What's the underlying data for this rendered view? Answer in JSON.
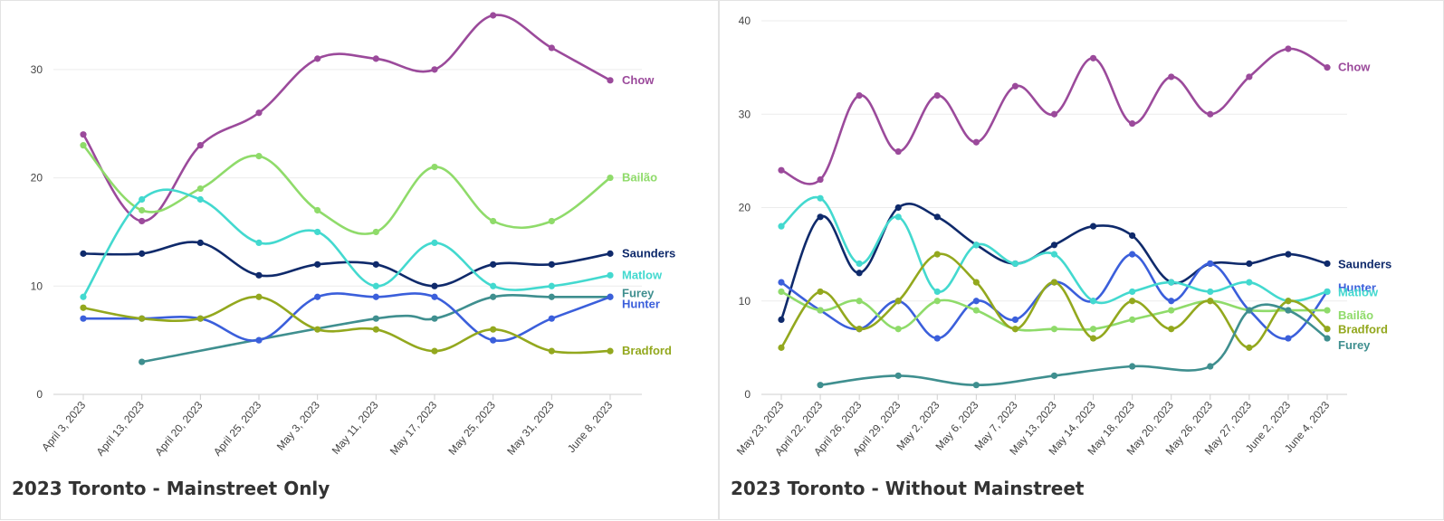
{
  "charts": [
    {
      "title": "2023 Toronto - Mainstreet Only",
      "chart_data": {
        "type": "line",
        "title": "2023 Toronto - Mainstreet Only",
        "categories": [
          "April 3, 2023",
          "April 13, 2023",
          "April 20, 2023",
          "April 25, 2023",
          "May 3, 2023",
          "May 11, 2023",
          "May 17, 2023",
          "May 25, 2023",
          "May 31, 2023",
          "June 8, 2023"
        ],
        "ylim": [
          0,
          35
        ],
        "yticks": [
          0,
          10,
          20,
          30
        ],
        "grid": true,
        "legend": "end-of-line labels",
        "series": [
          {
            "name": "Chow",
            "color": "#9b4a9b",
            "values": [
              24,
              16,
              23,
              26,
              31,
              31,
              30,
              35,
              32,
              29
            ]
          },
          {
            "name": "Bailão",
            "color": "#8fdb6a",
            "values": [
              23,
              17,
              19,
              22,
              17,
              15,
              21,
              16,
              16,
              20
            ]
          },
          {
            "name": "Saunders",
            "color": "#0f2a6b",
            "values": [
              13,
              13,
              14,
              11,
              12,
              12,
              10,
              12,
              12,
              13
            ]
          },
          {
            "name": "Matlow",
            "color": "#43d9cf",
            "values": [
              9,
              18,
              18,
              14,
              15,
              10,
              14,
              10,
              10,
              11
            ]
          },
          {
            "name": "Furey",
            "color": "#3f8f8f",
            "values": [
              null,
              3,
              null,
              null,
              null,
              7,
              7,
              9,
              9,
              9
            ]
          },
          {
            "name": "Hunter",
            "color": "#3b5fdb",
            "values": [
              7,
              7,
              7,
              5,
              9,
              9,
              9,
              5,
              7,
              9
            ]
          },
          {
            "name": "Bradford",
            "color": "#93a81e",
            "values": [
              8,
              7,
              7,
              9,
              6,
              6,
              4,
              6,
              4,
              4
            ]
          }
        ]
      }
    },
    {
      "title": "2023 Toronto - Without Mainstreet",
      "chart_data": {
        "type": "line",
        "title": "2023 Toronto - Without Mainstreet",
        "categories": [
          "May 23, 2023",
          "April 22, 2023",
          "April 26, 2023",
          "April 29, 2023",
          "May 2, 2023",
          "May 6, 2023",
          "May 7, 2023",
          "May 13, 2023",
          "May 14, 2023",
          "May 18, 2023",
          "May 20, 2023",
          "May 26, 2023",
          "May 27, 2023",
          "June 2, 2023",
          "June 4, 2023"
        ],
        "ylim": [
          0,
          40
        ],
        "yticks": [
          0,
          10,
          20,
          30,
          40
        ],
        "grid": true,
        "legend": "end-of-line labels",
        "series": [
          {
            "name": "Chow",
            "color": "#9b4a9b",
            "values": [
              24,
              23,
              32,
              26,
              32,
              27,
              33,
              30,
              36,
              29,
              34,
              30,
              34,
              37,
              35
            ]
          },
          {
            "name": "Saunders",
            "color": "#0f2a6b",
            "values": [
              8,
              19,
              13,
              20,
              19,
              16,
              14,
              16,
              18,
              17,
              12,
              14,
              14,
              15,
              14
            ]
          },
          {
            "name": "Hunter",
            "color": "#3b5fdb",
            "values": [
              12,
              9,
              7,
              10,
              6,
              10,
              8,
              12,
              10,
              15,
              10,
              14,
              9,
              6,
              11
            ]
          },
          {
            "name": "Matlow",
            "color": "#43d9cf",
            "values": [
              18,
              21,
              14,
              19,
              11,
              16,
              14,
              15,
              10,
              11,
              12,
              11,
              12,
              10,
              11
            ]
          },
          {
            "name": "Bailão",
            "color": "#8fdb6a",
            "values": [
              11,
              9,
              10,
              7,
              10,
              9,
              7,
              7,
              7,
              8,
              9,
              10,
              9,
              9,
              9
            ]
          },
          {
            "name": "Bradford",
            "color": "#93a81e",
            "values": [
              5,
              11,
              7,
              10,
              15,
              12,
              7,
              12,
              6,
              10,
              7,
              10,
              5,
              10,
              7
            ]
          },
          {
            "name": "Furey",
            "color": "#3f8f8f",
            "values": [
              null,
              1,
              null,
              2,
              null,
              1,
              null,
              2,
              null,
              3,
              null,
              3,
              9,
              9,
              6
            ]
          }
        ]
      }
    }
  ]
}
